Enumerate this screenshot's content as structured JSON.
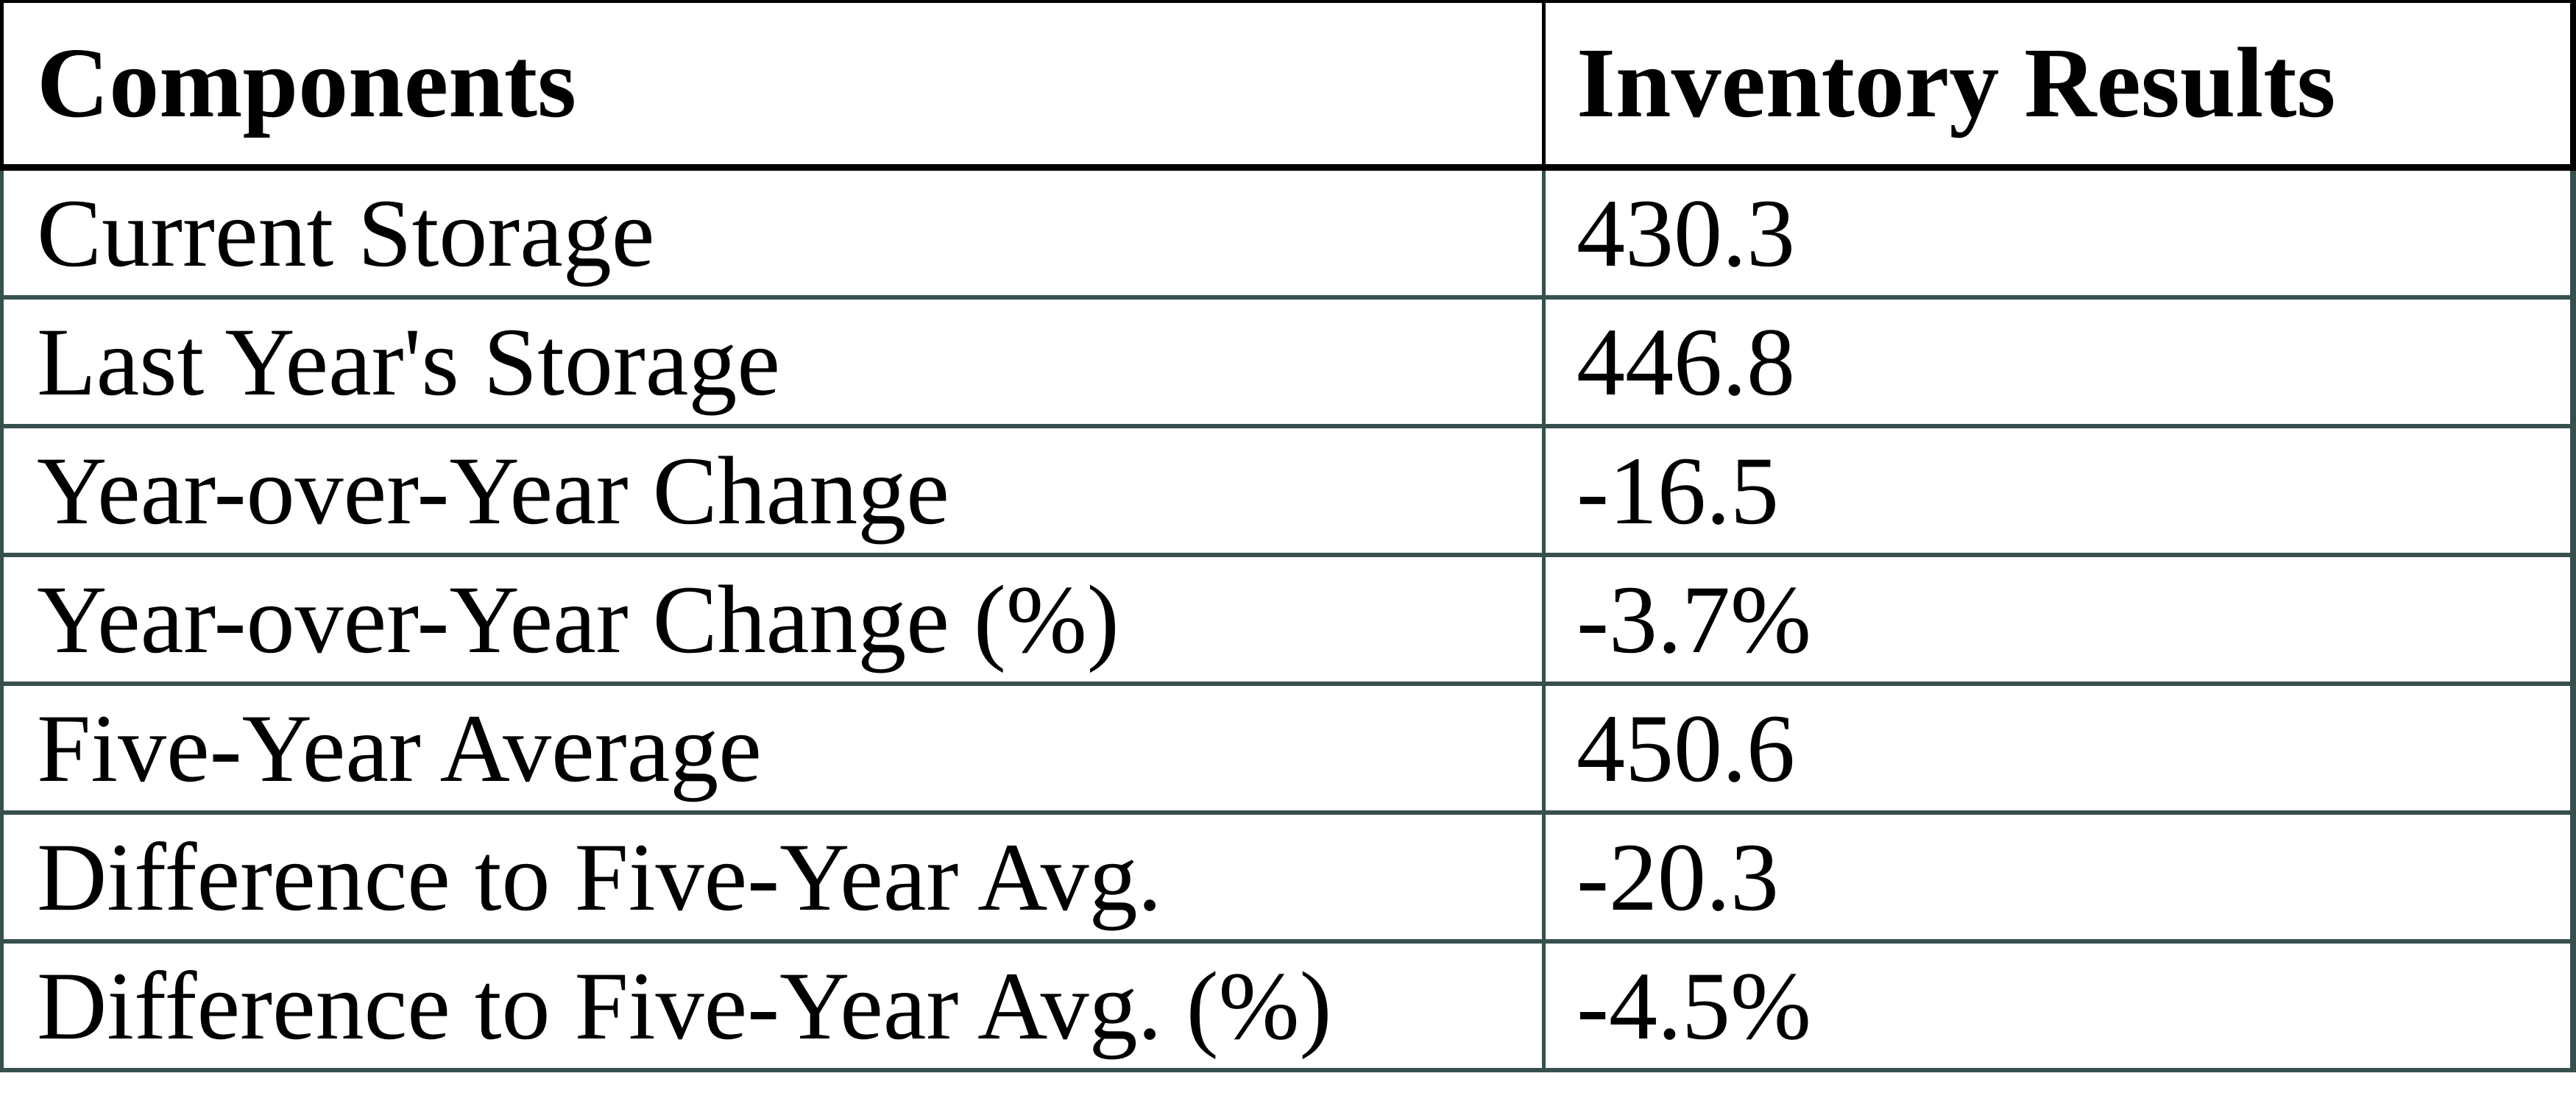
{
  "table": {
    "columns": [
      "Components",
      "Inventory Results"
    ],
    "rows": [
      {
        "component": "Current Storage",
        "value": "430.3"
      },
      {
        "component": "Last Year's Storage",
        "value": "446.8"
      },
      {
        "component": "Year-over-Year Change",
        "value": "-16.5"
      },
      {
        "component": "Year-over-Year Change (%)",
        "value": "-3.7%"
      },
      {
        "component": "Five-Year Average",
        "value": "450.6"
      },
      {
        "component": "Difference to Five-Year Avg.",
        "value": "-20.3"
      },
      {
        "component": "Difference to Five-Year Avg. (%)",
        "value": "-4.5%"
      }
    ]
  },
  "colors": {
    "header_border": "#000000",
    "body_border": "#37504e",
    "text": "#000000",
    "background": "#ffffff"
  }
}
